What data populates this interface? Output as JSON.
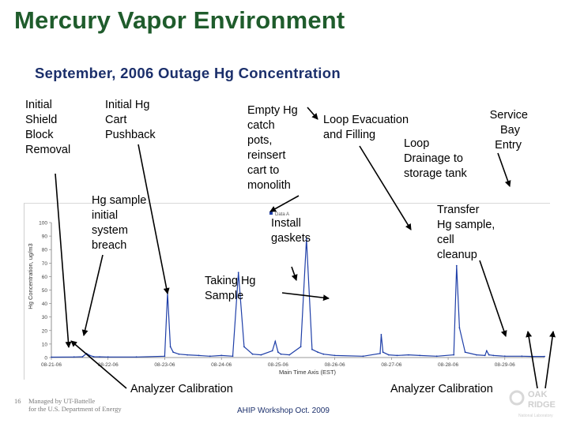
{
  "slide": {
    "title": "Mercury Vapor Environment",
    "subtitle": "September, 2006 Outage  Hg Concentration",
    "page_number": "16",
    "footer_left_line1": "Managed by UT-Battelle",
    "footer_left_line2": "for the U.S. Department of Energy",
    "footer_center": "AHIP Workshop Oct. 2009",
    "logo_line1": "OAK",
    "logo_line2": "RIDGE",
    "logo_line3": "National Laboratory"
  },
  "annotations": {
    "initial_shield_block_removal": [
      "Initial",
      "Shield",
      "Block",
      "Removal"
    ],
    "initial_hg_cart_pushback": [
      "Initial Hg",
      "Cart",
      "Pushback"
    ],
    "empty_hg_catch_pots": [
      "Empty Hg",
      "catch",
      "pots,",
      "reinsert",
      "cart to",
      "monolith"
    ],
    "loop_evacuation": [
      "Loop Evacuation",
      "and Filling"
    ],
    "loop_drainage": [
      "Loop",
      "Drainage to",
      "storage tank"
    ],
    "service_bay_entry": [
      "Service",
      "Bay",
      "Entry"
    ],
    "hg_sample_breach": [
      "Hg sample",
      "initial",
      "system",
      "breach"
    ],
    "install_gaskets": [
      "Install",
      "gaskets"
    ],
    "transfer_hg_sample": [
      "Transfer",
      "Hg sample,",
      "cell",
      "cleanup"
    ],
    "taking_hg_sample": [
      "Taking Hg",
      "Sample"
    ],
    "analyzer_calibration_left": "Analyzer Calibration",
    "analyzer_calibration_right": "Analyzer Calibration"
  },
  "chart_data": {
    "type": "line",
    "title": "",
    "xlabel": "Main Time Axis (EST)",
    "ylabel": "Hg Concentration, ug/m3",
    "legend": "Data A",
    "legend_position": "top-right",
    "ylim": [
      0,
      100
    ],
    "yticks": [
      "0",
      "10",
      "20",
      "30",
      "40",
      "50",
      "60",
      "70",
      "80",
      "90",
      "100"
    ],
    "xticks": [
      "08-21-06",
      "08-22-06",
      "08-23-06",
      "08-24-06",
      "08-25-06",
      "08-26-06",
      "08-27-06",
      "08-28-06",
      "08-29-06"
    ],
    "xlim": [
      0,
      8.7
    ],
    "grid": false,
    "line_color": "#1f3fa8",
    "series": [
      {
        "name": "Data A",
        "x": [
          0,
          0.4,
          0.55,
          0.62,
          0.68,
          0.75,
          0.85,
          1.0,
          1.5,
          2.0,
          2.05,
          2.1,
          2.15,
          2.25,
          2.4,
          2.6,
          2.8,
          3.0,
          3.2,
          3.3,
          3.4,
          3.55,
          3.7,
          3.9,
          3.95,
          4.0,
          4.05,
          4.2,
          4.4,
          4.5,
          4.6,
          4.7,
          4.8,
          5.0,
          5.5,
          5.8,
          5.82,
          5.85,
          5.95,
          6.1,
          6.3,
          6.5,
          6.8,
          7.1,
          7.15,
          7.2,
          7.3,
          7.5,
          7.65,
          7.68,
          7.72,
          7.8,
          8.0,
          8.3,
          8.5,
          8.7
        ],
        "y": [
          0.3,
          0.4,
          0.6,
          3,
          1.5,
          0.6,
          0.5,
          0.4,
          0.4,
          1,
          48,
          8,
          4,
          2.5,
          2,
          1.5,
          1,
          1.5,
          1,
          63,
          8,
          2.5,
          2,
          5,
          12,
          4,
          2.5,
          2,
          8,
          88,
          6,
          4,
          2.5,
          1.5,
          1,
          3,
          17,
          4,
          2,
          1.5,
          2,
          1.5,
          1,
          2,
          68,
          22,
          4,
          2,
          1.5,
          5,
          2,
          1.5,
          1,
          1,
          0.8,
          0.8
        ]
      }
    ]
  }
}
